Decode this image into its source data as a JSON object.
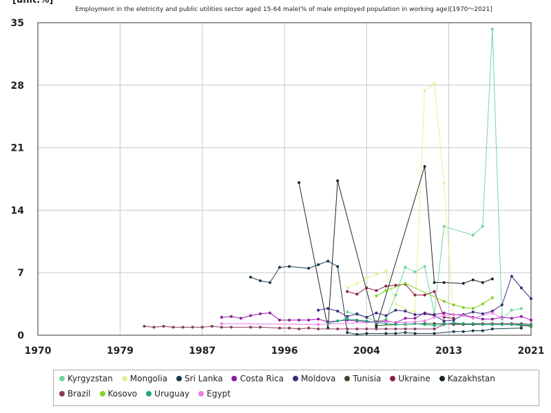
{
  "chart_data": {
    "type": "line",
    "title": "Employment in the eletricity and public utilities sector aged 15-64 male(% of male employed population in working age)[1970～2021]",
    "unit": "[unit:%]",
    "xlim": [
      1970,
      2021
    ],
    "xticks": [
      1970,
      {
        "value": 1978.5,
        "label": "1979"
      },
      1987,
      {
        "value": 1995.5,
        "label": "1996"
      },
      2004,
      {
        "value": 2012.5,
        "label": "2013"
      },
      2021
    ],
    "ylim": [
      0,
      35
    ],
    "yticks": [
      0,
      7,
      14,
      21,
      28,
      35
    ],
    "grid": true,
    "legend": "bottom",
    "series": [
      {
        "name": "Kyrgyzstan",
        "color": "#6fd69a",
        "x": [
          2002,
          2003,
          2004,
          2005,
          2006,
          2007,
          2008,
          2009,
          2010,
          2011,
          2012,
          2015,
          2016,
          2017,
          2018,
          2019,
          2020
        ],
        "values": [
          2.6,
          2.3,
          2.0,
          1.5,
          1.8,
          4.5,
          7.6,
          7.1,
          7.7,
          2.4,
          12.2,
          11.2,
          12.2,
          34.3,
          1.8,
          2.8,
          3.0
        ]
      },
      {
        "name": "Mongolia",
        "color": "#e6f09a",
        "x": [
          2002,
          2003,
          2004,
          2005,
          2006,
          2007,
          2008,
          2009,
          2010,
          2011,
          2012,
          2013
        ],
        "values": [
          5.3,
          5.8,
          6.4,
          6.8,
          7.2,
          3.5,
          3.0,
          2.6,
          27.4,
          28.2,
          17.0,
          2.0
        ]
      },
      {
        "name": "Sri Lanka",
        "color": "#163a4a",
        "x": [
          1992,
          1993,
          1994,
          1995,
          1996,
          1998,
          1999,
          2000,
          2001,
          2002,
          2003,
          2004,
          2006,
          2007,
          2008,
          2009,
          2011,
          2013,
          2014,
          2015,
          2016,
          2017,
          2020
        ],
        "values": [
          6.5,
          6.1,
          5.9,
          7.6,
          7.7,
          7.5,
          7.9,
          8.3,
          7.7,
          0.3,
          0.1,
          0.2,
          0.2,
          0.2,
          0.3,
          0.2,
          0.2,
          0.4,
          0.4,
          0.5,
          0.5,
          0.7,
          0.8
        ]
      },
      {
        "name": "Costa Rica",
        "color": "#8e1aa0",
        "x": [
          1989,
          1990,
          1991,
          1992,
          1993,
          1994,
          1995,
          1996,
          1997,
          1998,
          1999,
          2000,
          2001,
          2002,
          2003,
          2004,
          2005,
          2006,
          2007,
          2008,
          2009,
          2010,
          2011,
          2012,
          2013,
          2014,
          2015,
          2016,
          2017,
          2018,
          2019,
          2020,
          2021
        ],
        "values": [
          2.0,
          2.1,
          1.9,
          2.2,
          2.4,
          2.5,
          1.7,
          1.7,
          1.7,
          1.7,
          1.8,
          1.5,
          1.6,
          1.7,
          1.6,
          1.5,
          1.5,
          1.6,
          1.4,
          1.9,
          1.9,
          2.5,
          2.3,
          2.5,
          2.3,
          2.3,
          2.0,
          1.8,
          1.8,
          2.0,
          1.9,
          2.1,
          1.7
        ]
      },
      {
        "name": "Moldova",
        "color": "#3a2a80",
        "x": [
          1999,
          2000,
          2001,
          2002,
          2003,
          2004,
          2005,
          2006,
          2007,
          2008,
          2009,
          2010,
          2011,
          2012,
          2013,
          2014,
          2015,
          2016,
          2017,
          2018,
          2019,
          2020,
          2021
        ],
        "values": [
          2.8,
          3.0,
          2.7,
          2.1,
          2.4,
          2.0,
          2.5,
          2.2,
          2.8,
          2.7,
          2.3,
          2.4,
          2.2,
          1.6,
          1.7,
          2.3,
          2.6,
          2.4,
          2.7,
          3.4,
          6.6,
          5.3,
          4.1
        ]
      },
      {
        "name": "Tunisia",
        "color": "#3a4a30",
        "x": [
          2005,
          2010,
          2011,
          2012,
          2013,
          2014,
          2015,
          2016,
          2017,
          2018,
          2019,
          2020,
          2021
        ],
        "values": [
          1.1,
          1.3,
          1.3,
          1.3,
          1.2,
          1.2,
          1.2,
          1.2,
          1.2,
          1.2,
          1.2,
          1.1,
          1.0
        ]
      },
      {
        "name": "Ukraine",
        "color": "#8a2046",
        "x": [
          2002,
          2003,
          2004,
          2005,
          2006,
          2007,
          2008,
          2009,
          2010,
          2011,
          2012,
          2013
        ],
        "values": [
          4.9,
          4.6,
          5.3,
          5.0,
          5.5,
          5.6,
          5.7,
          4.5,
          4.5,
          4.9,
          2.0,
          1.9
        ]
      },
      {
        "name": "Kazakhstan",
        "color": "#18282a",
        "x": [
          1997,
          2000,
          2001,
          2005,
          2010,
          2011,
          2012,
          2014,
          2015,
          2016,
          2017
        ],
        "values": [
          17.1,
          0.8,
          17.3,
          0.9,
          18.9,
          5.9,
          5.9,
          5.8,
          6.2,
          5.9,
          6.3
        ]
      },
      {
        "name": "Brazil",
        "color": "#8a3a60",
        "x": [
          1981,
          1982,
          1983,
          1984,
          1985,
          1986,
          1987,
          1988,
          1989,
          1990,
          1992,
          1993,
          1995,
          1996,
          1997,
          1998,
          1999,
          2001,
          2002,
          2003,
          2004,
          2005,
          2006,
          2007,
          2008,
          2009,
          2011,
          2012,
          2013,
          2014,
          2015,
          2016,
          2017,
          2018,
          2019,
          2020,
          2021
        ],
        "values": [
          1.0,
          0.9,
          1.0,
          0.9,
          0.9,
          0.9,
          0.9,
          1.0,
          0.9,
          0.9,
          0.9,
          0.9,
          0.8,
          0.8,
          0.7,
          0.8,
          0.7,
          0.7,
          0.7,
          0.7,
          0.7,
          0.7,
          0.7,
          0.7,
          0.7,
          0.7,
          0.7,
          1.2,
          1.3,
          1.3,
          1.3,
          1.3,
          1.3,
          1.3,
          1.3,
          1.3,
          1.2
        ]
      },
      {
        "name": "Kosovo",
        "color": "#7ed321",
        "x": [
          2005,
          2006,
          2008,
          2012,
          2013,
          2014,
          2015,
          2016,
          2017
        ],
        "values": [
          4.4,
          5.0,
          5.8,
          3.8,
          3.4,
          3.1,
          3.0,
          3.5,
          4.2
        ]
      },
      {
        "name": "Uruguay",
        "color": "#1aaa78",
        "x": [
          2000,
          2001,
          2002,
          2003,
          2004,
          2005,
          2006,
          2007,
          2008,
          2009,
          2010,
          2011,
          2012,
          2013,
          2014,
          2015,
          2016,
          2017,
          2018,
          2019,
          2020,
          2021
        ],
        "values": [
          1.3,
          1.6,
          1.8,
          1.7,
          1.6,
          1.4,
          1.3,
          1.2,
          1.2,
          1.3,
          1.2,
          1.1,
          1.2,
          1.4,
          1.3,
          1.3,
          1.2,
          1.2,
          1.2,
          1.2,
          1.2,
          1.1
        ]
      },
      {
        "name": "Egypt",
        "color": "#f07ae8",
        "x": [
          1989,
          1999,
          2006,
          2008,
          2009,
          2010,
          2011,
          2012,
          2013,
          2014,
          2015,
          2017,
          2018
        ],
        "values": [
          1.3,
          1.2,
          1.5,
          1.4,
          1.5,
          1.6,
          2.0,
          2.2,
          2.3,
          2.2,
          1.9,
          2.5,
          1.9
        ]
      }
    ]
  }
}
